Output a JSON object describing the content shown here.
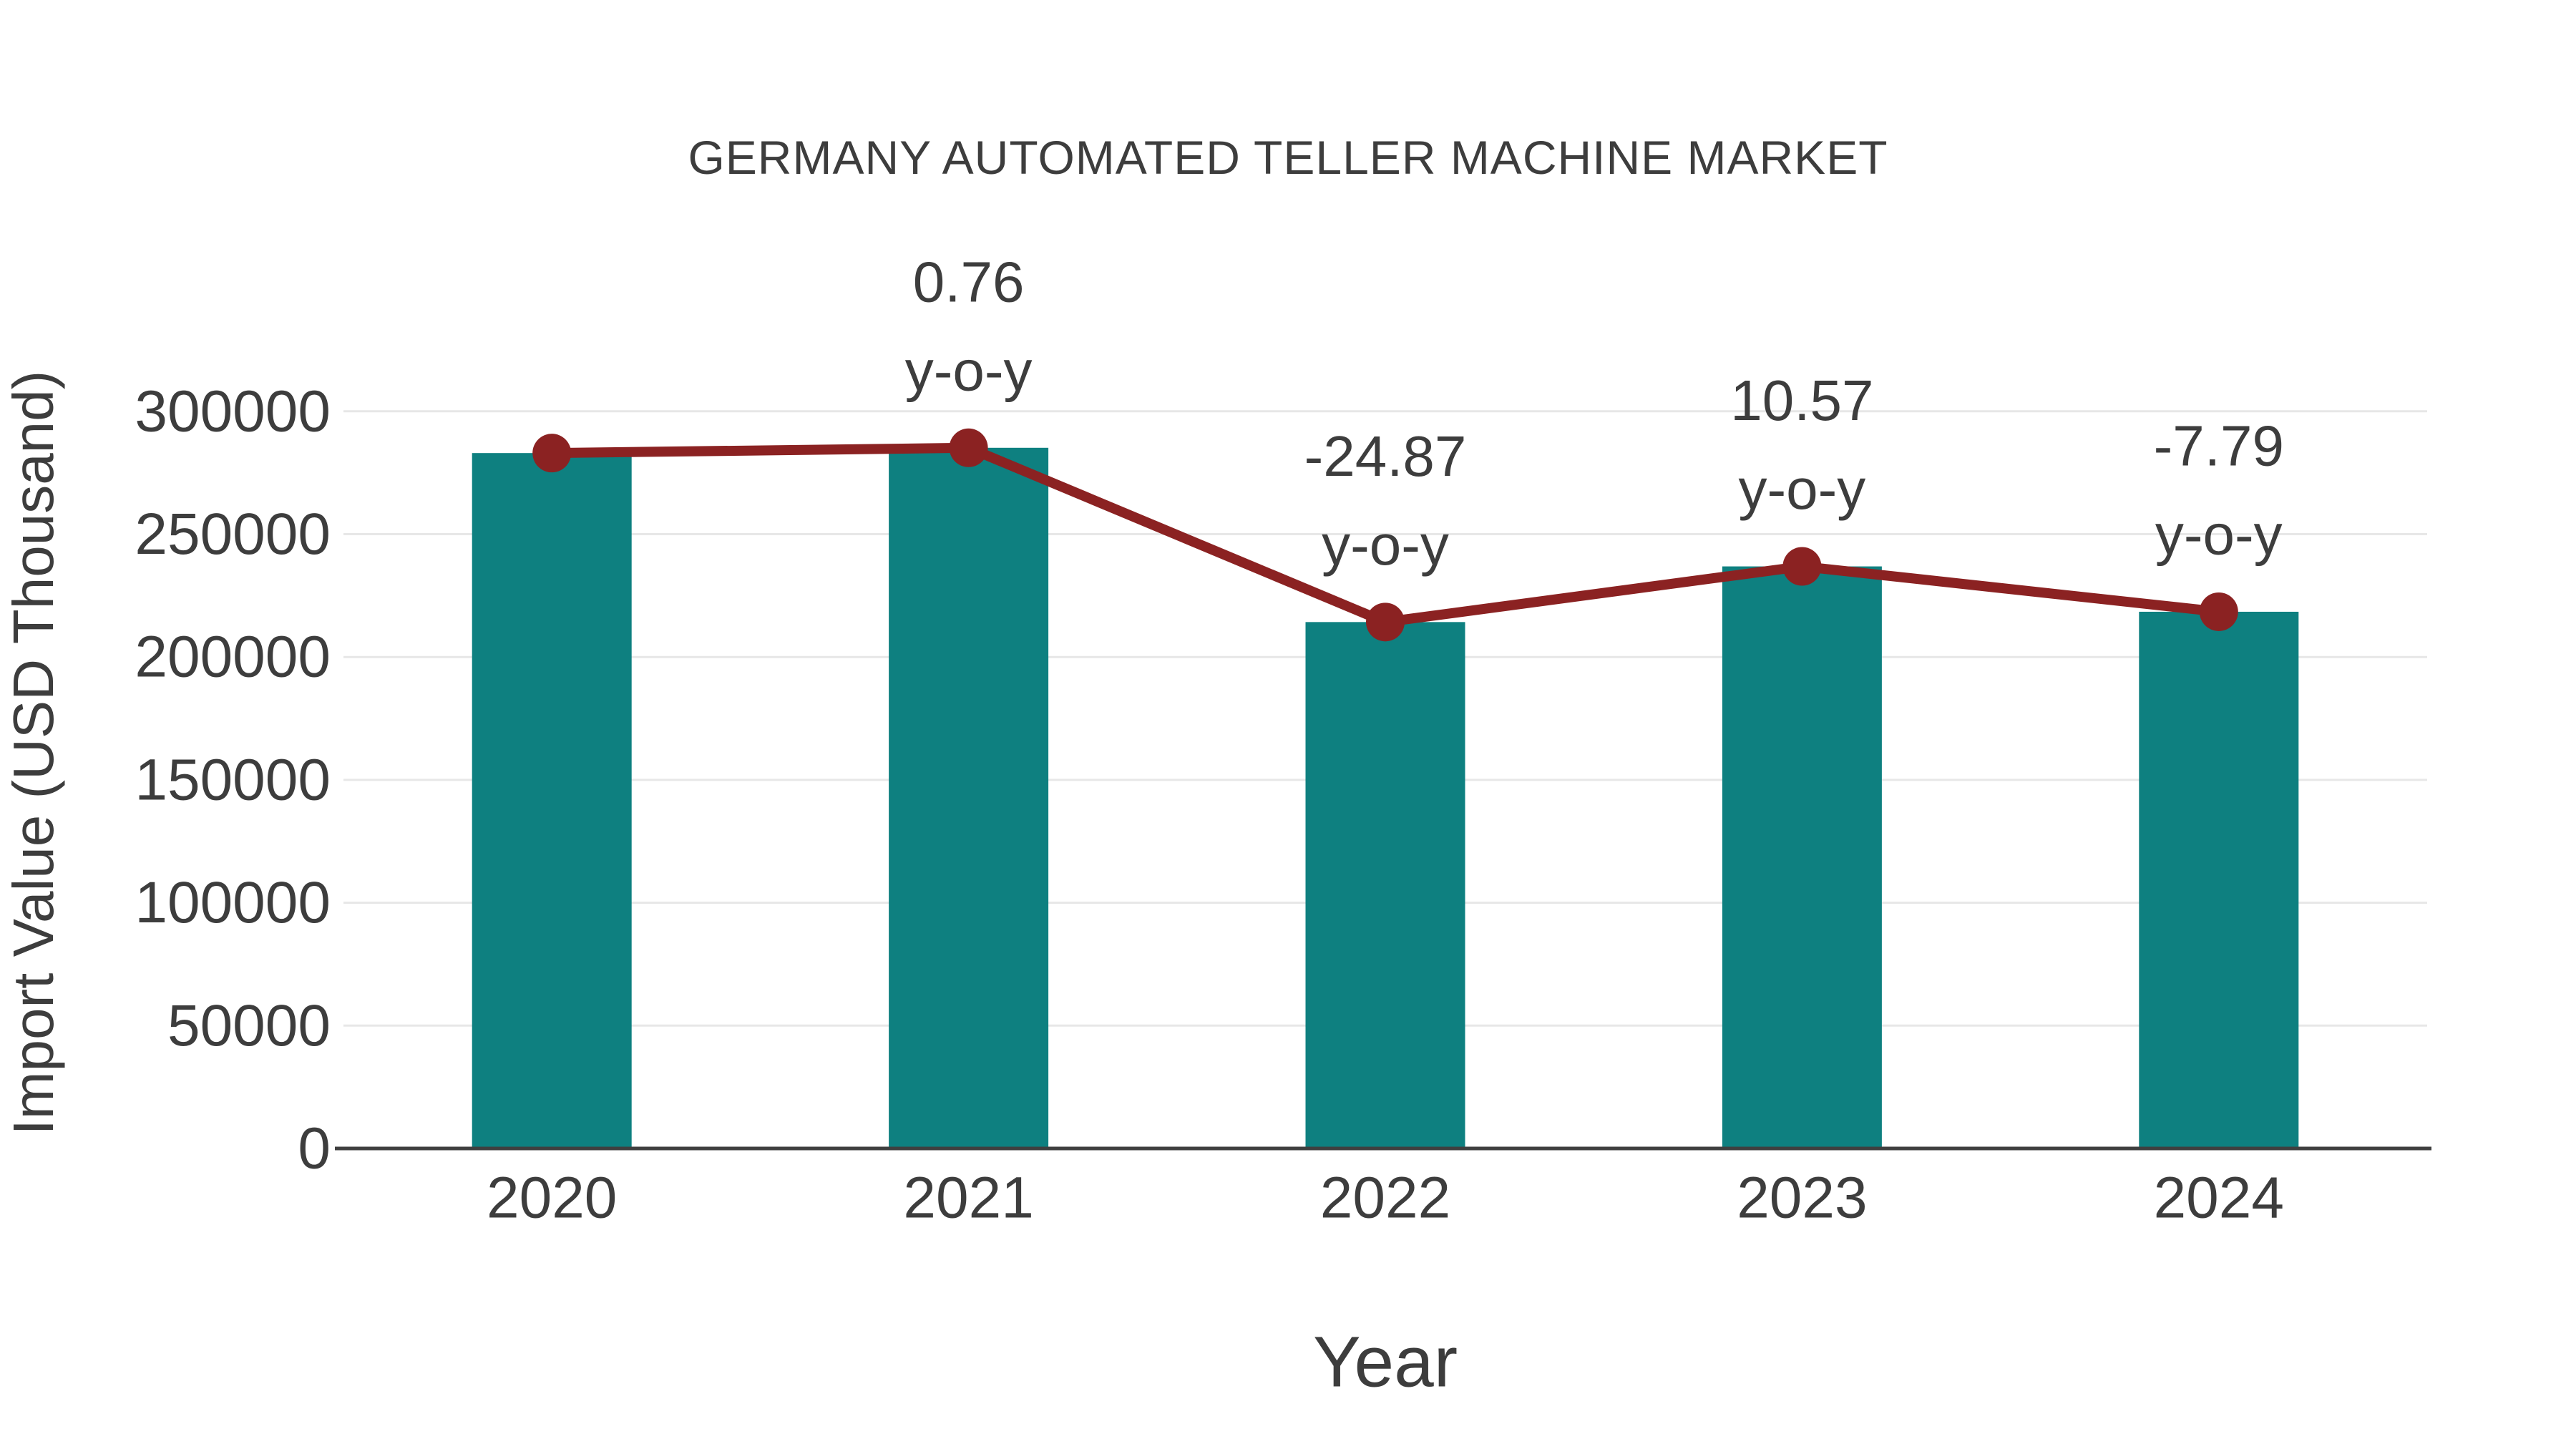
{
  "title": "GERMANY AUTOMATED TELLER MACHINE MARKET",
  "y_axis": {
    "label": "Import Value (USD Thousand)",
    "ticks": [
      0,
      50000,
      100000,
      150000,
      200000,
      250000,
      300000
    ]
  },
  "x_axis": {
    "label": "Year",
    "categories": [
      "2020",
      "2021",
      "2022",
      "2023",
      "2024"
    ]
  },
  "annotation_suffix": "y-o-y",
  "colors": {
    "bar": "#0e8080",
    "line": "#8b2222",
    "grid": "#e7e7e7",
    "axis": "#3f3f3f",
    "text": "#3d3d3d",
    "background": "#ffffff"
  },
  "chart_data": {
    "type": "bar",
    "title": "GERMANY AUTOMATED TELLER MACHINE MARKET",
    "xlabel": "Year",
    "ylabel": "Import Value (USD Thousand)",
    "categories": [
      "2020",
      "2021",
      "2022",
      "2023",
      "2024"
    ],
    "series": [
      {
        "name": "Import Value (USD Thousand)",
        "type": "bar",
        "values": [
          283000,
          285150,
          214230,
          236880,
          218420
        ]
      },
      {
        "name": "y-o-y change (%)",
        "type": "line",
        "values": [
          283000,
          285150,
          214230,
          236880,
          218420
        ],
        "point_labels": [
          "",
          "0.76",
          "-24.87",
          "10.57",
          "-7.79"
        ],
        "yoy_percent": [
          null,
          0.76,
          -24.87,
          10.57,
          -7.79
        ]
      }
    ],
    "ylim": [
      0,
      320000
    ],
    "grid": true,
    "legend_position": "none"
  }
}
